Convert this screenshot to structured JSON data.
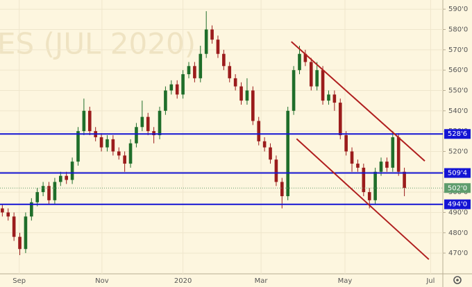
{
  "chart_data": {
    "type": "candlestick",
    "watermark": "ES (JUL 2020)",
    "open": [
      492,
      490,
      488,
      478,
      472,
      488,
      495,
      500,
      503,
      496,
      505,
      508,
      506,
      515,
      530,
      540,
      530,
      527,
      522,
      526,
      520,
      518,
      514,
      524,
      532,
      537,
      530,
      528,
      540,
      550,
      553,
      548,
      558,
      562,
      556,
      568,
      580,
      575,
      568,
      562,
      556,
      552,
      545,
      550,
      535,
      525,
      522,
      516,
      505,
      498,
      540,
      560,
      568,
      564,
      552,
      560,
      545,
      548,
      544,
      528,
      520,
      514,
      512,
      500,
      496,
      510,
      515,
      512,
      527,
      510
    ],
    "high": [
      494,
      492,
      490,
      480,
      490,
      497,
      502,
      505,
      505,
      507,
      510,
      510,
      517,
      532,
      546,
      542,
      532,
      529,
      528,
      528,
      522,
      520,
      526,
      534,
      545,
      539,
      532,
      542,
      552,
      555,
      555,
      560,
      564,
      564,
      572,
      589,
      582,
      577,
      570,
      564,
      558,
      554,
      556,
      552,
      537,
      527,
      524,
      518,
      507,
      542,
      562,
      572,
      570,
      566,
      564,
      562,
      550,
      550,
      546,
      530,
      522,
      516,
      514,
      502,
      512,
      517,
      517,
      530,
      529,
      512
    ],
    "low": [
      488,
      486,
      476,
      469,
      470,
      486,
      493,
      498,
      494,
      494,
      503,
      504,
      504,
      513,
      528,
      528,
      525,
      520,
      520,
      518,
      516,
      510,
      512,
      522,
      530,
      528,
      524,
      526,
      538,
      548,
      546,
      546,
      556,
      554,
      554,
      566,
      573,
      566,
      560,
      554,
      550,
      543,
      543,
      533,
      523,
      520,
      514,
      503,
      492,
      496,
      538,
      558,
      562,
      550,
      550,
      543,
      543,
      540,
      526,
      518,
      510,
      510,
      498,
      492,
      494,
      508,
      510,
      510,
      508,
      498
    ],
    "close": [
      490,
      488,
      478,
      472,
      488,
      495,
      500,
      503,
      496,
      505,
      508,
      506,
      515,
      530,
      540,
      530,
      527,
      522,
      526,
      520,
      518,
      514,
      524,
      532,
      537,
      530,
      528,
      540,
      550,
      553,
      548,
      558,
      562,
      556,
      568,
      580,
      575,
      568,
      562,
      556,
      552,
      545,
      550,
      535,
      525,
      522,
      516,
      505,
      498,
      540,
      560,
      568,
      564,
      552,
      560,
      545,
      548,
      544,
      528,
      520,
      514,
      512,
      500,
      496,
      510,
      515,
      512,
      527,
      510,
      502
    ],
    "up_color": "#1f6e2a",
    "down_color": "#9b1c1c",
    "xlim": [
      -0.4,
      75.6
    ],
    "xticks": [
      {
        "value": 2.9,
        "label": "Sep"
      },
      {
        "value": 17.1,
        "label": "Nov"
      },
      {
        "value": 31.0,
        "label": "2020"
      },
      {
        "value": 44.4,
        "label": "Mar"
      },
      {
        "value": 58.8,
        "label": "May"
      },
      {
        "value": 73.5,
        "label": "Jul"
      }
    ],
    "ylim": [
      459.8,
      594.5
    ],
    "yticks": [
      {
        "value": 470,
        "label": "470'0"
      },
      {
        "value": 480,
        "label": "480'0"
      },
      {
        "value": 490,
        "label": "490'0"
      },
      {
        "value": 500,
        "label": "500'0"
      },
      {
        "value": 510,
        "label": "510'0"
      },
      {
        "value": 520,
        "label": "520'0"
      },
      {
        "value": 530,
        "label": "530'0"
      },
      {
        "value": 540,
        "label": "540'0"
      },
      {
        "value": 550,
        "label": "550'0"
      },
      {
        "value": 560,
        "label": "560'0"
      },
      {
        "value": 570,
        "label": "570'0"
      },
      {
        "value": 580,
        "label": "580'0"
      },
      {
        "value": 590,
        "label": "590'0"
      }
    ],
    "grid": true,
    "levels": [
      {
        "value": 528.6,
        "label": "528'6"
      },
      {
        "value": 509.4,
        "label": "509'4"
      },
      {
        "value": 494.0,
        "label": "494'0"
      }
    ],
    "level_color": "#1414d4",
    "last_price": {
      "value": 502.0,
      "label": "502'0"
    },
    "last_price_color": "#5e9c6c",
    "trendlines": [
      {
        "x": [
          49.6,
          72.5
        ],
        "y": [
          574.0,
          515.3
        ]
      },
      {
        "x": [
          50.5,
          73.2
        ],
        "y": [
          526.2,
          466.9
        ]
      }
    ],
    "trendline_color": "#b01e1e"
  }
}
